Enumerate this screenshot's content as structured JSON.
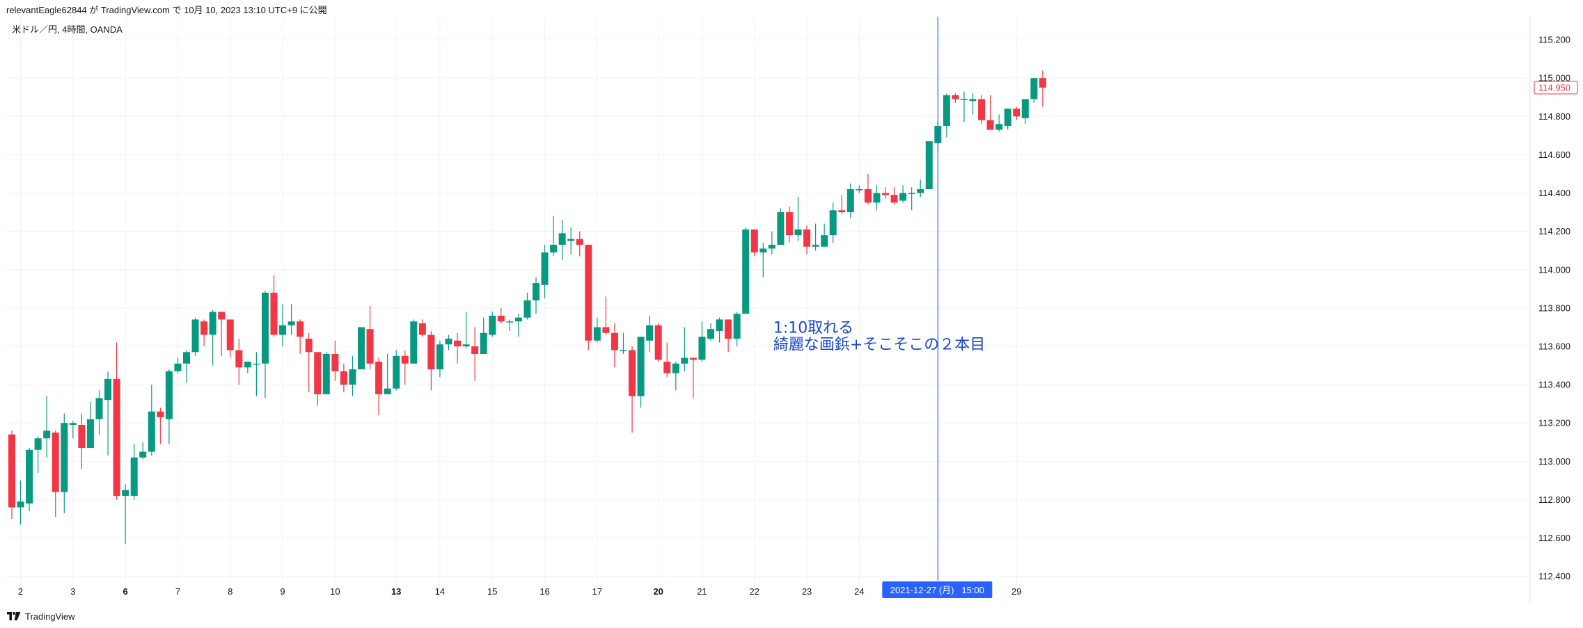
{
  "header": {
    "published_line": "relevantEagle62844 が TradingView.com で 10月 10, 2023 13:10 UTC+9 に公開"
  },
  "symbol": {
    "label": "米ドル／円, 4時間, OANDA"
  },
  "footer": {
    "brand": "TradingView",
    "logo_icon": "tradingview-logo-icon"
  },
  "colors": {
    "up": "#089981",
    "down": "#f23645",
    "grid": "#f0f3fa",
    "crosshair": "#2962ff",
    "annotation": "#1848cc",
    "axis_text": "#131722"
  },
  "chart_data": {
    "type": "candlestick",
    "title": "",
    "xlabel": "",
    "ylabel": "",
    "ylim": [
      112.29,
      115.32
    ],
    "y_ticks": [
      "115.200",
      "115.000",
      "114.800",
      "114.600",
      "114.400",
      "114.200",
      "114.000",
      "113.800",
      "113.600",
      "113.400",
      "113.200",
      "113.000",
      "112.800",
      "112.600",
      "112.400"
    ],
    "x_ticks": [
      {
        "label": "2",
        "bold": false,
        "index": 1
      },
      {
        "label": "3",
        "bold": false,
        "index": 7
      },
      {
        "label": "6",
        "bold": true,
        "index": 13
      },
      {
        "label": "7",
        "bold": false,
        "index": 19
      },
      {
        "label": "8",
        "bold": false,
        "index": 25
      },
      {
        "label": "9",
        "bold": false,
        "index": 31
      },
      {
        "label": "10",
        "bold": false,
        "index": 37
      },
      {
        "label": "13",
        "bold": true,
        "index": 44
      },
      {
        "label": "14",
        "bold": false,
        "index": 49
      },
      {
        "label": "15",
        "bold": false,
        "index": 55
      },
      {
        "label": "16",
        "bold": false,
        "index": 61
      },
      {
        "label": "17",
        "bold": false,
        "index": 67
      },
      {
        "label": "20",
        "bold": true,
        "index": 74
      },
      {
        "label": "21",
        "bold": false,
        "index": 79
      },
      {
        "label": "22",
        "bold": false,
        "index": 85
      },
      {
        "label": "23",
        "bold": false,
        "index": 91
      },
      {
        "label": "24",
        "bold": false,
        "index": 97
      },
      {
        "label": "29",
        "bold": false,
        "index": 115
      }
    ],
    "last_price_label": "114.950",
    "crosshair": {
      "index": 106,
      "label": "2021-12-27 (月)   15:00"
    },
    "annotation": {
      "lines": [
        "1:10取れる",
        "綺麗な画鋲+そこそこの２本目"
      ],
      "near_index": 87,
      "price": 113.62
    },
    "candles": [
      [
        113.14,
        113.16,
        112.7,
        112.76
      ],
      [
        112.76,
        112.9,
        112.67,
        112.79
      ],
      [
        112.78,
        113.07,
        112.74,
        113.06
      ],
      [
        113.06,
        113.13,
        112.94,
        113.12
      ],
      [
        113.12,
        113.34,
        113.02,
        113.16
      ],
      [
        113.15,
        113.16,
        112.71,
        112.84
      ],
      [
        112.84,
        113.25,
        112.73,
        113.2
      ],
      [
        113.19,
        113.21,
        113.12,
        113.2
      ],
      [
        113.19,
        113.25,
        112.96,
        113.07
      ],
      [
        113.07,
        113.31,
        113.07,
        113.22
      ],
      [
        113.22,
        113.37,
        113.14,
        113.33
      ],
      [
        113.32,
        113.47,
        113.03,
        113.43
      ],
      [
        113.43,
        113.62,
        112.8,
        112.82
      ],
      [
        112.82,
        112.88,
        112.57,
        112.85
      ],
      [
        112.82,
        113.09,
        112.8,
        113.02
      ],
      [
        113.02,
        113.1,
        113.01,
        113.05
      ],
      [
        113.05,
        113.4,
        113.03,
        113.26
      ],
      [
        113.26,
        113.28,
        113.09,
        113.23
      ],
      [
        113.22,
        113.48,
        113.09,
        113.47
      ],
      [
        113.47,
        113.54,
        113.46,
        113.51
      ],
      [
        113.51,
        113.58,
        113.41,
        113.57
      ],
      [
        113.57,
        113.75,
        113.55,
        113.74
      ],
      [
        113.73,
        113.74,
        113.6,
        113.66
      ],
      [
        113.66,
        113.79,
        113.5,
        113.78
      ],
      [
        113.78,
        113.78,
        113.55,
        113.74
      ],
      [
        113.74,
        113.74,
        113.54,
        113.58
      ],
      [
        113.58,
        113.64,
        113.4,
        113.49
      ],
      [
        113.49,
        113.52,
        113.46,
        113.52
      ],
      [
        113.51,
        113.57,
        113.34,
        113.51
      ],
      [
        113.51,
        113.89,
        113.33,
        113.88
      ],
      [
        113.88,
        113.97,
        113.65,
        113.66
      ],
      [
        113.66,
        113.82,
        113.6,
        113.71
      ],
      [
        113.71,
        113.82,
        113.66,
        113.73
      ],
      [
        113.73,
        113.74,
        113.56,
        113.65
      ],
      [
        113.64,
        113.67,
        113.36,
        113.57
      ],
      [
        113.57,
        113.57,
        113.29,
        113.35
      ],
      [
        113.35,
        113.57,
        113.36,
        113.56
      ],
      [
        113.56,
        113.63,
        113.42,
        113.47
      ],
      [
        113.47,
        113.51,
        113.36,
        113.4
      ],
      [
        113.4,
        113.55,
        113.34,
        113.48
      ],
      [
        113.48,
        113.7,
        113.49,
        113.7
      ],
      [
        113.69,
        113.81,
        113.48,
        113.51
      ],
      [
        113.52,
        113.54,
        113.24,
        113.35
      ],
      [
        113.35,
        113.56,
        113.36,
        113.38
      ],
      [
        113.38,
        113.58,
        113.37,
        113.55
      ],
      [
        113.55,
        113.58,
        113.4,
        113.51
      ],
      [
        113.51,
        113.74,
        113.51,
        113.73
      ],
      [
        113.72,
        113.74,
        113.65,
        113.66
      ],
      [
        113.66,
        113.68,
        113.37,
        113.48
      ],
      [
        113.48,
        113.63,
        113.44,
        113.61
      ],
      [
        113.61,
        113.66,
        113.58,
        113.64
      ],
      [
        113.63,
        113.67,
        113.51,
        113.6
      ],
      [
        113.6,
        113.78,
        113.59,
        113.61
      ],
      [
        113.6,
        113.7,
        113.42,
        113.56
      ],
      [
        113.56,
        113.75,
        113.56,
        113.67
      ],
      [
        113.66,
        113.78,
        113.65,
        113.76
      ],
      [
        113.76,
        113.8,
        113.72,
        113.73
      ],
      [
        113.73,
        113.74,
        113.68,
        113.73
      ],
      [
        113.73,
        113.77,
        113.65,
        113.75
      ],
      [
        113.75,
        113.88,
        113.74,
        113.84
      ],
      [
        113.84,
        113.96,
        113.77,
        113.93
      ],
      [
        113.92,
        114.13,
        113.85,
        114.09
      ],
      [
        114.09,
        114.28,
        114.07,
        114.13
      ],
      [
        114.13,
        114.26,
        114.05,
        114.19
      ],
      [
        114.15,
        114.22,
        114.08,
        114.16
      ],
      [
        114.16,
        114.2,
        114.07,
        114.13
      ],
      [
        114.13,
        114.13,
        113.58,
        113.63
      ],
      [
        113.63,
        113.75,
        113.62,
        113.7
      ],
      [
        113.7,
        113.86,
        113.66,
        113.67
      ],
      [
        113.67,
        113.72,
        113.49,
        113.58
      ],
      [
        113.58,
        113.67,
        113.56,
        113.58
      ],
      [
        113.58,
        113.6,
        113.15,
        113.34
      ],
      [
        113.34,
        113.64,
        113.28,
        113.65
      ],
      [
        113.63,
        113.76,
        113.57,
        113.71
      ],
      [
        113.71,
        113.72,
        113.52,
        113.53
      ],
      [
        113.52,
        113.62,
        113.44,
        113.46
      ],
      [
        113.46,
        113.52,
        113.37,
        113.51
      ],
      [
        113.51,
        113.7,
        113.47,
        113.54
      ],
      [
        113.54,
        113.54,
        113.33,
        113.53
      ],
      [
        113.53,
        113.73,
        113.52,
        113.65
      ],
      [
        113.64,
        113.72,
        113.63,
        113.69
      ],
      [
        113.68,
        113.75,
        113.62,
        113.74
      ],
      [
        113.74,
        113.74,
        113.57,
        113.64
      ],
      [
        113.64,
        113.78,
        113.6,
        113.77
      ],
      [
        113.77,
        114.22,
        113.78,
        114.21
      ],
      [
        114.21,
        114.21,
        114.07,
        114.09
      ],
      [
        114.09,
        114.14,
        113.96,
        114.11
      ],
      [
        114.11,
        114.2,
        114.08,
        114.13
      ],
      [
        114.13,
        114.32,
        114.14,
        114.3
      ],
      [
        114.3,
        114.33,
        114.14,
        114.18
      ],
      [
        114.18,
        114.38,
        114.15,
        114.21
      ],
      [
        114.21,
        114.23,
        114.08,
        114.12
      ],
      [
        114.12,
        114.24,
        114.1,
        114.13
      ],
      [
        114.12,
        114.24,
        114.12,
        114.18
      ],
      [
        114.18,
        114.35,
        114.14,
        114.31
      ],
      [
        114.31,
        114.39,
        114.29,
        114.3
      ],
      [
        114.3,
        114.45,
        114.27,
        114.42
      ],
      [
        114.42,
        114.44,
        114.4,
        114.42
      ],
      [
        114.42,
        114.5,
        114.34,
        114.35
      ],
      [
        114.35,
        114.44,
        114.31,
        114.4
      ],
      [
        114.4,
        114.43,
        114.37,
        114.39
      ],
      [
        114.39,
        114.43,
        114.34,
        114.35
      ],
      [
        114.36,
        114.44,
        114.35,
        114.4
      ],
      [
        114.4,
        114.43,
        114.31,
        114.4
      ],
      [
        114.4,
        114.47,
        114.38,
        114.42
      ],
      [
        114.42,
        114.66,
        114.42,
        114.67
      ],
      [
        114.66,
        114.77,
        114.62,
        114.75
      ],
      [
        114.75,
        114.92,
        114.69,
        114.91
      ],
      [
        114.91,
        114.92,
        114.87,
        114.89
      ],
      [
        114.89,
        114.93,
        114.77,
        114.89
      ],
      [
        114.88,
        114.92,
        114.81,
        114.89
      ],
      [
        114.89,
        114.91,
        114.76,
        114.78
      ],
      [
        114.78,
        114.91,
        114.73,
        114.73
      ],
      [
        114.73,
        114.81,
        114.72,
        114.76
      ],
      [
        114.75,
        114.83,
        114.73,
        114.84
      ],
      [
        114.84,
        114.85,
        114.78,
        114.8
      ],
      [
        114.79,
        114.87,
        114.76,
        114.89
      ],
      [
        114.89,
        115.0,
        114.87,
        115.0
      ],
      [
        115.0,
        115.04,
        114.85,
        114.95
      ]
    ]
  }
}
